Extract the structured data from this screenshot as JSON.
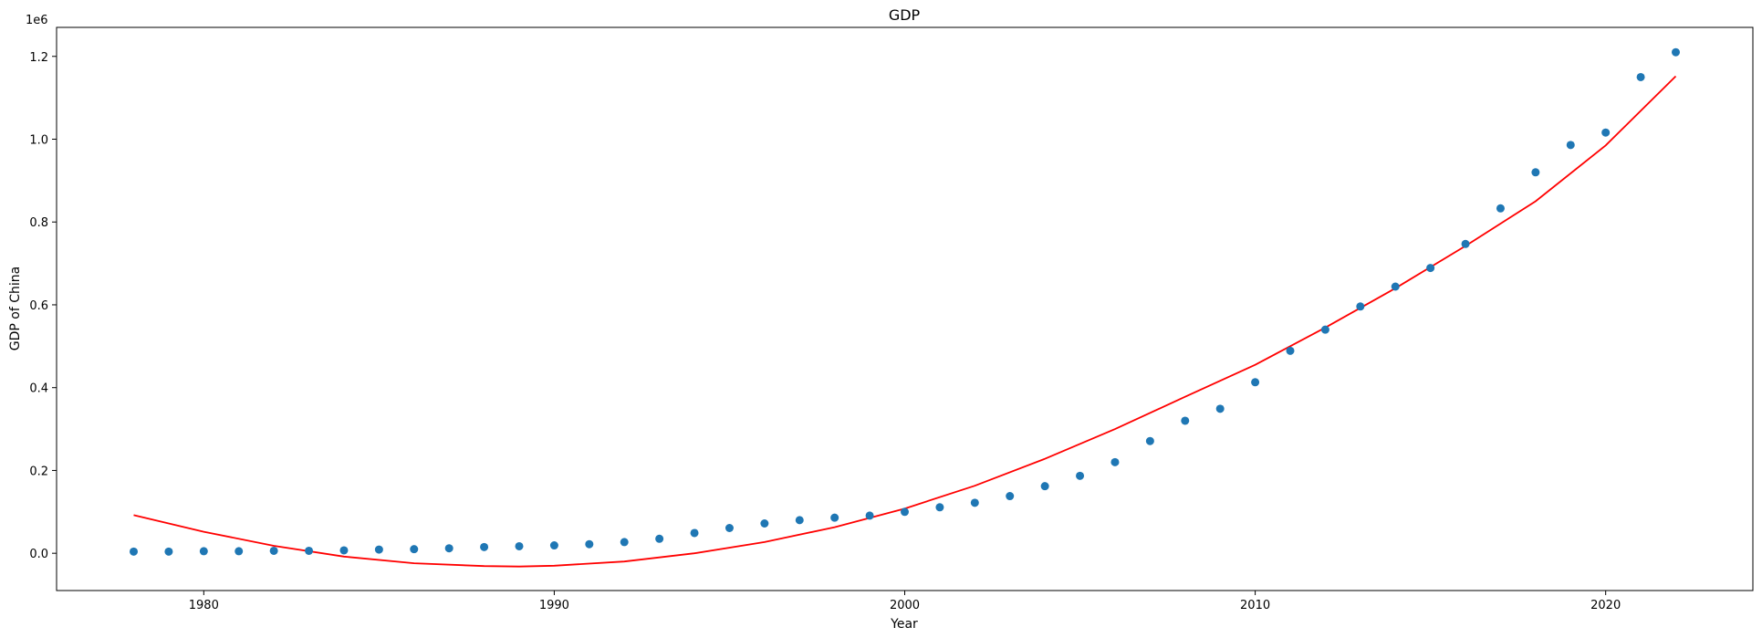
{
  "chart_data": {
    "type": "scatter",
    "title": "GDP",
    "xlabel": "Year",
    "ylabel": "GDP of China",
    "y_offset_label": "1e6",
    "xlim": [
      1975.8,
      2024.2
    ],
    "ylim": [
      -0.09,
      1.27
    ],
    "y_scale": 1000000,
    "x_ticks": [
      1980,
      1990,
      2000,
      2010,
      2020
    ],
    "y_ticks": [
      0.0,
      0.2,
      0.4,
      0.6,
      0.8,
      1.0,
      1.2
    ],
    "grid": false,
    "point_color": "#1f77b4",
    "line_color": "#ff0000",
    "series": [
      {
        "kind": "scatter",
        "x": [
          1978,
          1979,
          1980,
          1981,
          1982,
          1983,
          1984,
          1985,
          1986,
          1987,
          1988,
          1989,
          1990,
          1991,
          1992,
          1993,
          1994,
          1995,
          1996,
          1997,
          1998,
          1999,
          2000,
          2001,
          2002,
          2003,
          2004,
          2005,
          2006,
          2007,
          2008,
          2009,
          2010,
          2011,
          2012,
          2013,
          2014,
          2015,
          2016,
          2017,
          2018,
          2019,
          2020,
          2021,
          2022
        ],
        "y": [
          0.004,
          0.004,
          0.005,
          0.005,
          0.006,
          0.006,
          0.007,
          0.009,
          0.01,
          0.012,
          0.015,
          0.017,
          0.019,
          0.022,
          0.027,
          0.035,
          0.049,
          0.061,
          0.072,
          0.08,
          0.086,
          0.091,
          0.1,
          0.111,
          0.122,
          0.138,
          0.162,
          0.187,
          0.22,
          0.271,
          0.32,
          0.349,
          0.413,
          0.489,
          0.54,
          0.596,
          0.644,
          0.689,
          0.747,
          0.833,
          0.92,
          0.986,
          1.016,
          1.15,
          1.21
        ]
      },
      {
        "kind": "line",
        "x": [
          1978,
          1980,
          1982,
          1984,
          1986,
          1988,
          1989,
          1990,
          1992,
          1994,
          1996,
          1998,
          2000,
          2002,
          2004,
          2006,
          2008,
          2010,
          2012,
          2014,
          2016,
          2018,
          2020,
          2022
        ],
        "y": [
          0.092,
          0.052,
          0.018,
          -0.008,
          -0.024,
          -0.031,
          -0.032,
          -0.03,
          -0.02,
          0.0,
          0.027,
          0.063,
          0.108,
          0.163,
          0.228,
          0.3,
          0.378,
          0.455,
          0.545,
          0.64,
          0.742,
          0.85,
          0.985,
          1.152
        ]
      }
    ]
  }
}
